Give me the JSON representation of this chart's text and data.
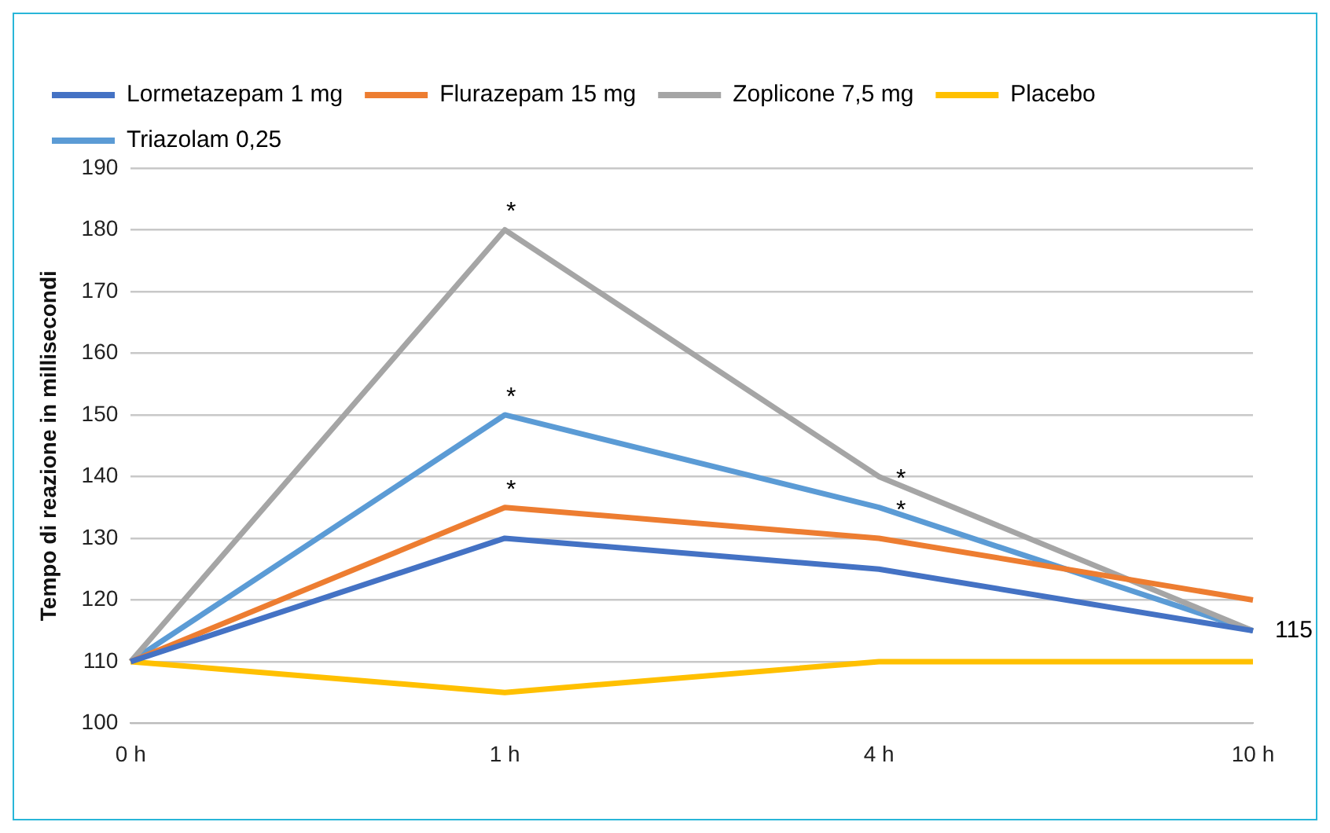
{
  "chart_data": {
    "type": "line",
    "ylabel": "Tempo di reazione in millisecondi",
    "categories": [
      "0 h",
      "1 h",
      "4 h",
      "10 h"
    ],
    "series": [
      {
        "name": "Lormetazepam 1 mg",
        "color": "#4472c4",
        "values": [
          110,
          130,
          125,
          115
        ]
      },
      {
        "name": "Flurazepam 15 mg",
        "color": "#ed7d31",
        "values": [
          110,
          135,
          130,
          120
        ]
      },
      {
        "name": "Zoplicone 7,5 mg",
        "color": "#a5a5a5",
        "values": [
          110,
          180,
          140,
          115
        ]
      },
      {
        "name": "Placebo",
        "color": "#ffc000",
        "values": [
          110,
          105,
          110,
          110
        ]
      },
      {
        "name": "Triazolam 0,25",
        "color": "#5b9bd5",
        "values": [
          110,
          150,
          135,
          115
        ]
      }
    ],
    "ylim": [
      100,
      190
    ],
    "yticks": [
      100,
      110,
      120,
      130,
      140,
      150,
      160,
      170,
      180,
      190
    ],
    "grid": "y",
    "legend": "top",
    "marker": "none",
    "line_style": "solid",
    "annotations": [
      {
        "text": "*",
        "x": "1 h",
        "y": 180
      },
      {
        "text": "*",
        "x": "1 h",
        "y": 150
      },
      {
        "text": "*",
        "x": "1 h",
        "y": 135
      },
      {
        "text": "*",
        "x": "4 h",
        "y": 140
      },
      {
        "text": "*",
        "x": "4 h",
        "y": 135
      },
      {
        "text": "115",
        "x": "10 h",
        "y": 115
      }
    ]
  }
}
